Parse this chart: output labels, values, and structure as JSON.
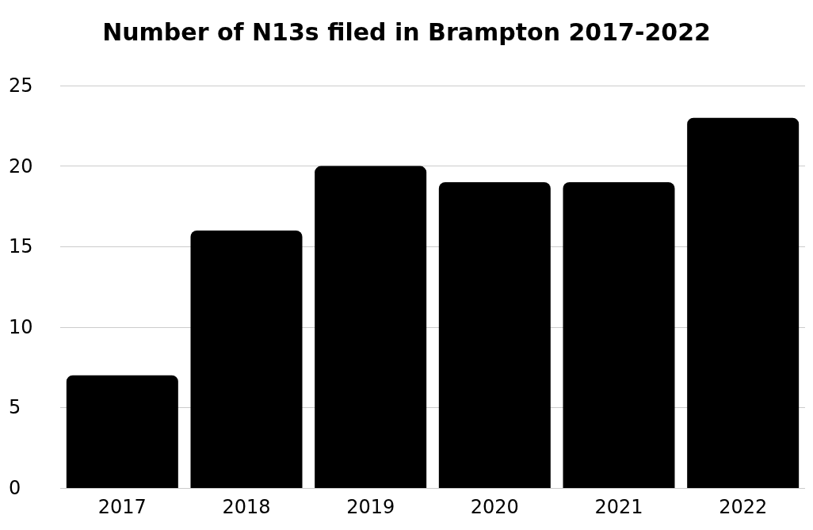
{
  "chart_data": {
    "type": "bar",
    "title": "Number of N13s filed in Brampton 2017-2022",
    "categories": [
      "2017",
      "2018",
      "2019",
      "2020",
      "2021",
      "2022"
    ],
    "values": [
      7,
      16,
      20,
      19,
      19,
      23
    ],
    "color": "#000000",
    "ylim": [
      0,
      25
    ],
    "yticks": [
      0,
      5,
      10,
      15,
      20,
      25
    ],
    "grid": "y"
  }
}
